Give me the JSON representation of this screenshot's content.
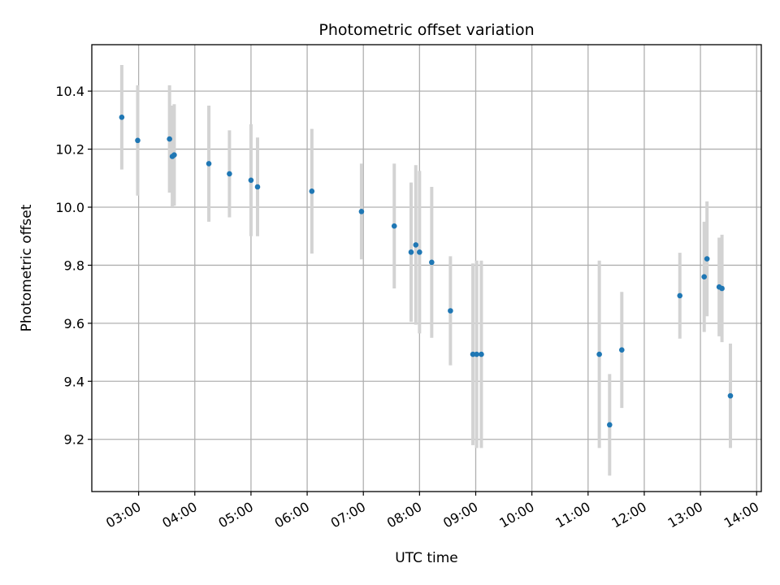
{
  "chart_data": {
    "type": "scatter",
    "title": "Photometric offset variation",
    "xlabel": "UTC time",
    "ylabel": "Photometric offset",
    "x_ticks": [
      "03:00",
      "04:00",
      "05:00",
      "06:00",
      "07:00",
      "08:00",
      "09:00",
      "10:00",
      "11:00",
      "12:00",
      "13:00",
      "14:00"
    ],
    "y_ticks": [
      "9.2",
      "9.4",
      "9.6",
      "9.8",
      "10.0",
      "10.2",
      "10.4"
    ],
    "xlim": [
      "02:10",
      "14:05"
    ],
    "ylim": [
      9.02,
      10.56
    ],
    "grid": true,
    "colors": {
      "point": "#1f77b4",
      "errorbar": "#d3d3d3",
      "grid": "#b0b0b0"
    },
    "series": [
      {
        "points": [
          {
            "x": "02:42",
            "y": 10.31,
            "yerr": 0.18
          },
          {
            "x": "02:59",
            "y": 10.23,
            "yerr": 0.19
          },
          {
            "x": "03:33",
            "y": 10.235,
            "yerr": 0.185
          },
          {
            "x": "03:36",
            "y": 10.175,
            "yerr": 0.175
          },
          {
            "x": "03:38",
            "y": 10.18,
            "yerr": 0.175
          },
          {
            "x": "04:15",
            "y": 10.15,
            "yerr": 0.2
          },
          {
            "x": "04:37",
            "y": 10.115,
            "yerr": 0.15
          },
          {
            "x": "05:00",
            "y": 10.093,
            "yerr": 0.193
          },
          {
            "x": "05:07",
            "y": 10.07,
            "yerr": 0.17
          },
          {
            "x": "06:05",
            "y": 10.055,
            "yerr": 0.215
          },
          {
            "x": "06:58",
            "y": 9.985,
            "yerr": 0.165
          },
          {
            "x": "07:33",
            "y": 9.935,
            "yerr": 0.215
          },
          {
            "x": "07:51",
            "y": 9.845,
            "yerr": 0.24
          },
          {
            "x": "07:56",
            "y": 9.87,
            "yerr": 0.275
          },
          {
            "x": "08:00",
            "y": 9.845,
            "yerr": 0.28
          },
          {
            "x": "08:13",
            "y": 9.81,
            "yerr": 0.26
          },
          {
            "x": "08:33",
            "y": 9.643,
            "yerr": 0.188
          },
          {
            "x": "08:57",
            "y": 9.493,
            "yerr": 0.313
          },
          {
            "x": "09:01",
            "y": 9.493,
            "yerr": 0.323
          },
          {
            "x": "09:06",
            "y": 9.493,
            "yerr": 0.323
          },
          {
            "x": "11:12",
            "y": 9.493,
            "yerr": 0.323
          },
          {
            "x": "11:23",
            "y": 9.25,
            "yerr": 0.175
          },
          {
            "x": "11:36",
            "y": 9.508,
            "yerr": 0.2
          },
          {
            "x": "12:38",
            "y": 9.695,
            "yerr": 0.148
          },
          {
            "x": "13:04",
            "y": 9.76,
            "yerr": 0.19
          },
          {
            "x": "13:07",
            "y": 9.822,
            "yerr": 0.198
          },
          {
            "x": "13:20",
            "y": 9.725,
            "yerr": 0.17
          },
          {
            "x": "13:23",
            "y": 9.72,
            "yerr": 0.185
          },
          {
            "x": "13:32",
            "y": 9.35,
            "yerr": 0.18
          }
        ]
      }
    ]
  }
}
